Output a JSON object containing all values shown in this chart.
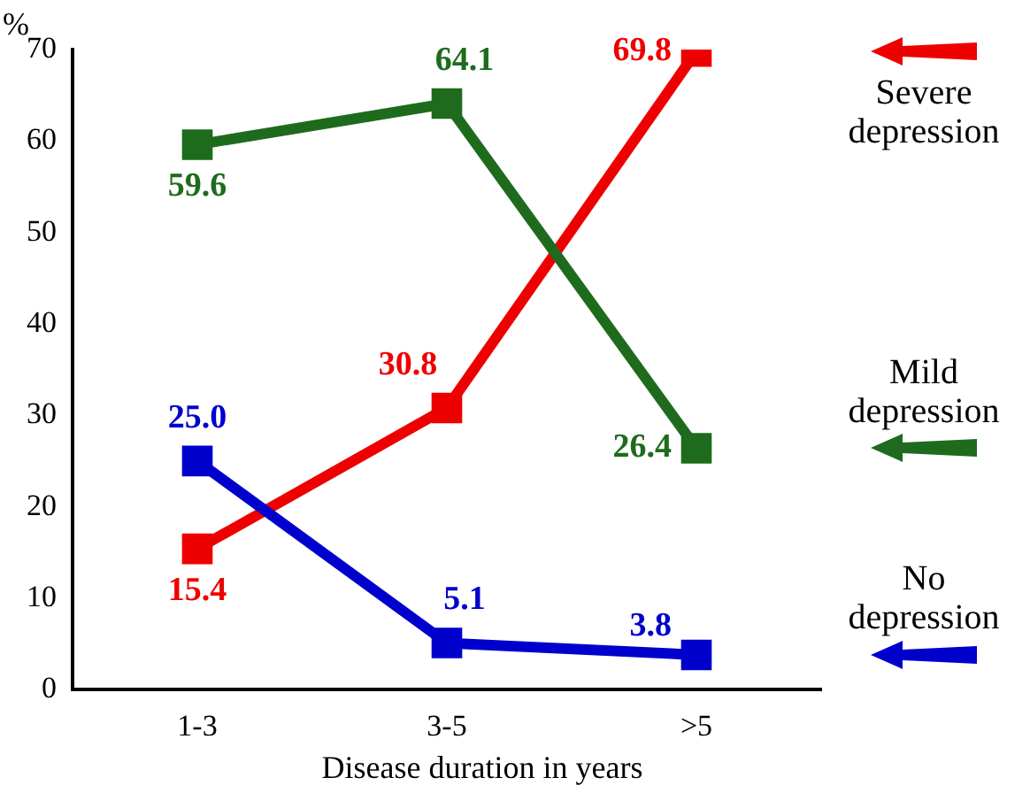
{
  "chart_data": {
    "type": "line",
    "ylabel": "%",
    "xlabel": "Disease duration in years",
    "categories": [
      "1-3",
      "3-5",
      ">5"
    ],
    "series": [
      {
        "name": "No depression",
        "color": "#0000cc",
        "values": [
          25.0,
          5.1,
          3.8
        ],
        "value_labels": [
          "25.0",
          "5.1",
          "3.8"
        ]
      },
      {
        "name": "Mild depression",
        "color": "#1e6b1e",
        "values": [
          59.6,
          64.1,
          26.4
        ],
        "value_labels": [
          "59.6",
          "64.1",
          "26.4"
        ]
      },
      {
        "name": "Severe depression",
        "color": "#ee0000",
        "values": [
          15.4,
          30.8,
          69.8
        ],
        "value_labels": [
          "15.4",
          "30.8",
          "69.8"
        ]
      }
    ],
    "ylim": [
      0,
      70
    ],
    "yticks": [
      0,
      10,
      20,
      30,
      40,
      50,
      60,
      70
    ],
    "grid": false,
    "legend": "right",
    "marker": "square",
    "line_style": "solid"
  }
}
